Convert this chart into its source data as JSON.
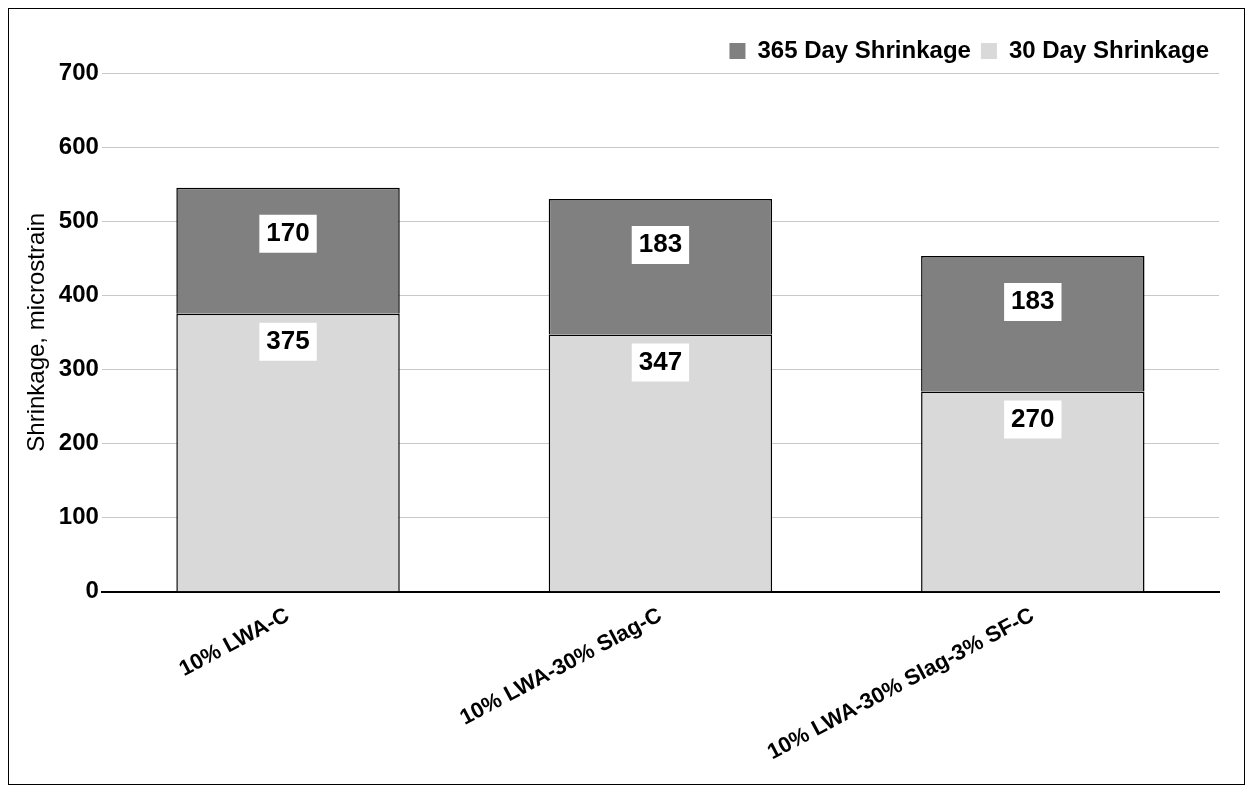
{
  "chart_data": {
    "type": "bar",
    "ylabel": "Shrinkage, microstrain",
    "categories": [
      "10% LWA-C",
      "10% LWA-30% Slag-C",
      "10% LWA-30% Slag-3% SF-C"
    ],
    "series": [
      {
        "name": "30 Day Shrinkage",
        "color": "#d9d9d9",
        "values": [
          375,
          347,
          270
        ]
      },
      {
        "name": "365 Day Shrinkage",
        "color": "#808080",
        "values": [
          170,
          183,
          183
        ]
      }
    ],
    "stacked": true,
    "ylim": [
      0,
      700
    ],
    "yticks": [
      0,
      100,
      200,
      300,
      400,
      500,
      600,
      700
    ],
    "grid": "y",
    "legend": "top right",
    "data_labels": true
  }
}
